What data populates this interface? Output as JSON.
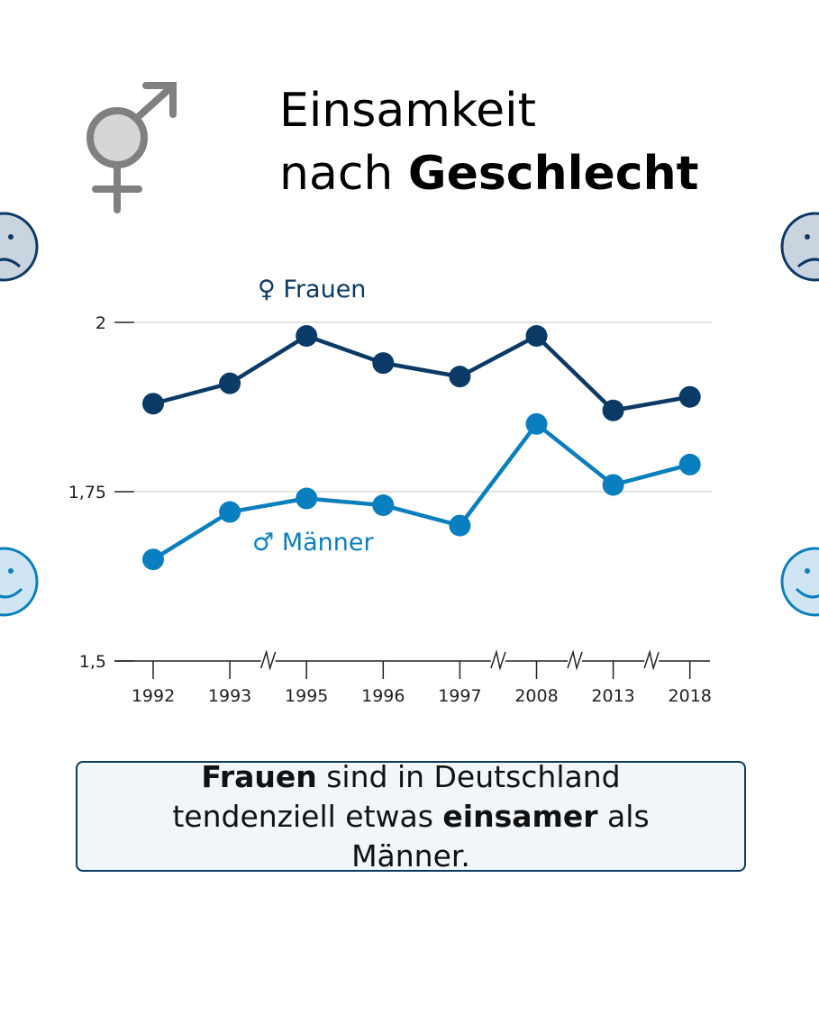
{
  "title": {
    "line1": "Einsamkeit",
    "line2_regular": "nach ",
    "line2_bold": "Geschlecht"
  },
  "icons": {
    "header": "gender-symbol-icon",
    "left_top": "sad-face-icon",
    "left_bottom": "happy-face-icon",
    "right_top": "sad-face-icon",
    "right_bottom": "happy-face-icon"
  },
  "chart_data": {
    "type": "line",
    "categories": [
      "1992",
      "1993",
      "1995",
      "1996",
      "1997",
      "2008",
      "2013",
      "2018"
    ],
    "series": [
      {
        "name": "Frauen",
        "symbol": "♀",
        "color": "#0b3a66",
        "values": [
          1.88,
          1.91,
          1.98,
          1.94,
          1.92,
          1.98,
          1.87,
          1.89
        ]
      },
      {
        "name": "Männer",
        "symbol": "♂",
        "color": "#0a7fbf",
        "values": [
          1.65,
          1.72,
          1.74,
          1.73,
          1.7,
          1.85,
          1.76,
          1.79
        ]
      }
    ],
    "yticks": [
      {
        "value": 2,
        "label": "2"
      },
      {
        "value": 1.75,
        "label": "1,75"
      },
      {
        "value": 1.5,
        "label": "1,5"
      }
    ],
    "ylim": [
      1.5,
      2.0
    ],
    "axis_breaks_after": [
      "1993",
      "1997",
      "2008",
      "2013"
    ],
    "grid": true
  },
  "summary": {
    "bold1": "Frauen",
    "text1": " sind in Deutschland tendenziell etwas ",
    "bold2": "einsamer",
    "text2": " als Männer."
  }
}
